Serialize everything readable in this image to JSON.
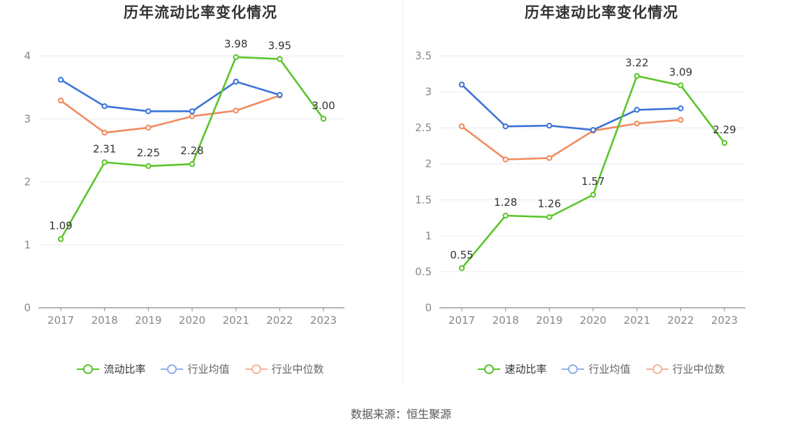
{
  "chart_data": [
    {
      "type": "line",
      "title": "历年流动比率变化情况",
      "categories": [
        "2017",
        "2018",
        "2019",
        "2020",
        "2021",
        "2022",
        "2023"
      ],
      "ylim": [
        0,
        4
      ],
      "yticks": [
        "0",
        "1",
        "2",
        "3",
        "4"
      ],
      "grid": true,
      "legend_position": "bottom",
      "series": [
        {
          "name": "流动比率",
          "color": "#5bc52b",
          "values": [
            1.09,
            2.31,
            2.25,
            2.28,
            3.98,
            3.95,
            3.0
          ],
          "labels": [
            "1.09",
            "2.31",
            "2.25",
            "2.28",
            "3.98",
            "3.95",
            "3.00"
          ]
        },
        {
          "name": "行业均值",
          "color": "#3b73d9",
          "values": [
            3.62,
            3.2,
            3.12,
            3.12,
            3.59,
            3.38,
            null
          ]
        },
        {
          "name": "行业中位数",
          "color": "#f08a5d",
          "values": [
            3.29,
            2.78,
            2.86,
            3.04,
            3.13,
            3.37,
            null
          ]
        }
      ]
    },
    {
      "type": "line",
      "title": "历年速动比率变化情况",
      "categories": [
        "2017",
        "2018",
        "2019",
        "2020",
        "2021",
        "2022",
        "2023"
      ],
      "ylim": [
        0,
        3.5
      ],
      "yticks": [
        "0",
        "0.5",
        "1",
        "1.5",
        "2",
        "2.5",
        "3",
        "3.5"
      ],
      "grid": true,
      "legend_position": "bottom",
      "series": [
        {
          "name": "速动比率",
          "color": "#5bc52b",
          "values": [
            0.55,
            1.28,
            1.26,
            1.57,
            3.22,
            3.09,
            2.29
          ],
          "labels": [
            "0.55",
            "1.28",
            "1.26",
            "1.57",
            "3.22",
            "3.09",
            "2.29"
          ]
        },
        {
          "name": "行业均值",
          "color": "#3b73d9",
          "values": [
            3.1,
            2.52,
            2.53,
            2.47,
            2.75,
            2.77,
            null
          ]
        },
        {
          "name": "行业中位数",
          "color": "#f08a5d",
          "values": [
            2.52,
            2.06,
            2.08,
            2.46,
            2.56,
            2.61,
            null
          ]
        }
      ]
    }
  ],
  "legend_colors": {
    "primary": "#5bc52b",
    "avg": "#8fb3ea",
    "median": "#f4b49b"
  },
  "source": "数据来源：恒生聚源"
}
